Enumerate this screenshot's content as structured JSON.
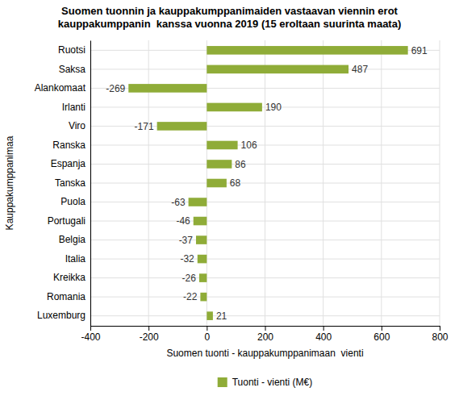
{
  "chart_data": {
    "type": "bar",
    "orientation": "horizontal",
    "title": "Suomen tuonnin ja kauppakumppanimaiden vastaavan viennin erot\nkauppakumppanin  kanssa vuonna 2019 (15 eroltaan suurinta maata)",
    "xlabel": "Suomen tuonti - kauppakumppanimaan  vienti",
    "ylabel": "Kauppakumppanimaa",
    "categories": [
      "Luxemburg",
      "Romania",
      "Kreikka",
      "Italia",
      "Belgia",
      "Portugali",
      "Puola",
      "Tanska",
      "Espanja",
      "Ranska",
      "Viro",
      "Irlanti",
      "Alankomaat",
      "Saksa",
      "Ruotsi"
    ],
    "series": [
      {
        "name": "Tuonti - vienti (M€)",
        "color": "#8fac38",
        "values": [
          21,
          -22,
          -26,
          -32,
          -37,
          -46,
          -63,
          68,
          86,
          106,
          -171,
          190,
          -269,
          487,
          691
        ]
      }
    ],
    "xlim": [
      -400,
      800
    ],
    "xticks": [
      -400,
      -200,
      0,
      200,
      400,
      600,
      800
    ],
    "grid": true,
    "legend": "bottom",
    "data_labels": true
  }
}
